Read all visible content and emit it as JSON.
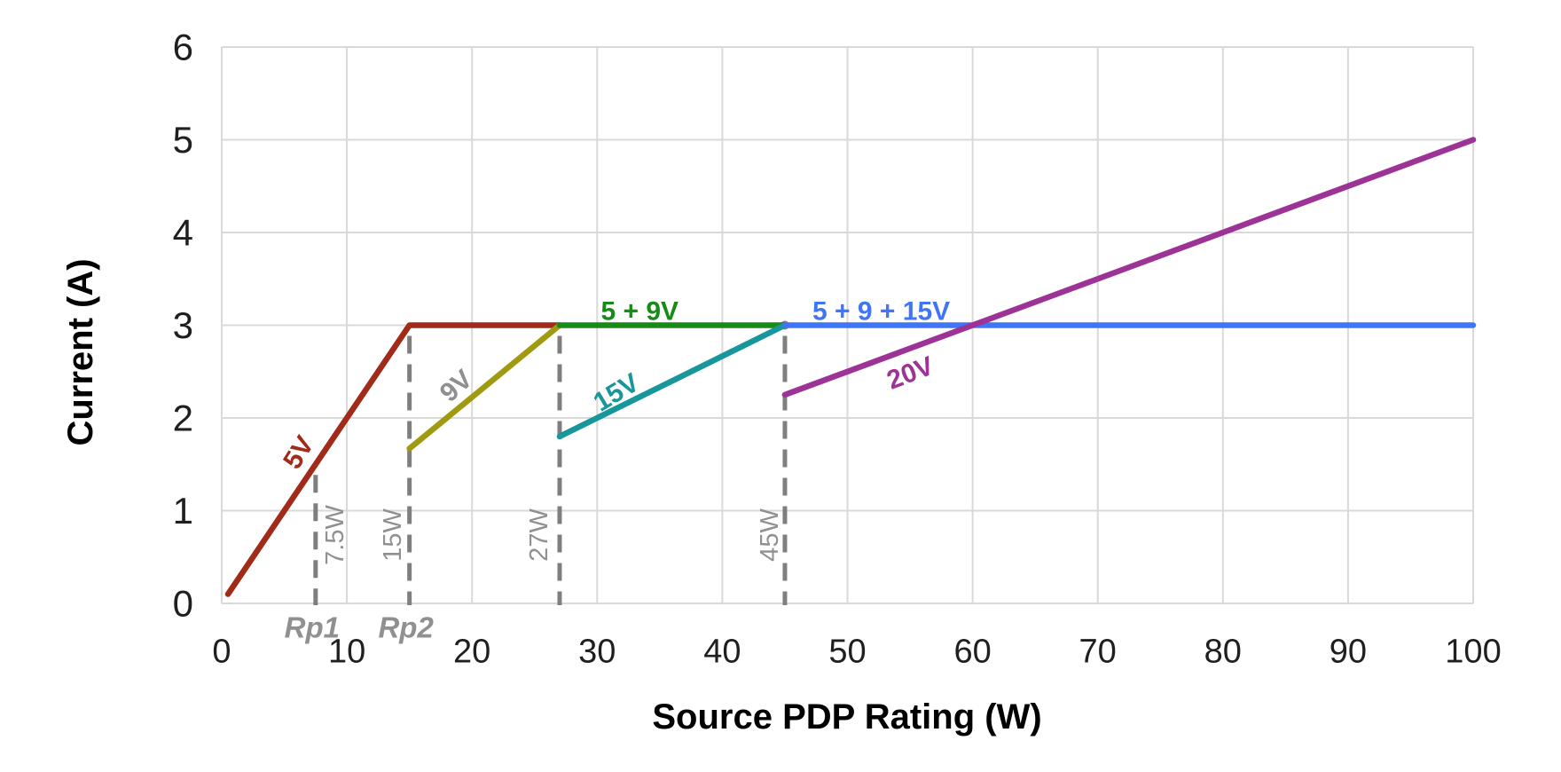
{
  "chart_data": {
    "type": "line",
    "title": "",
    "xlabel": "Source PDP Rating (W)",
    "ylabel": "Current (A)",
    "xlim": [
      0,
      100
    ],
    "ylim": [
      0,
      6
    ],
    "x_ticks": [
      0,
      10,
      20,
      30,
      40,
      50,
      60,
      70,
      80,
      90,
      100
    ],
    "y_ticks": [
      0,
      1,
      2,
      3,
      4,
      5,
      6
    ],
    "grid": true,
    "legend": "inline-labels",
    "colors": {
      "grid": "#D9D9D9",
      "guide_dash": "#7F7F7F",
      "guide_text": "#909090",
      "tick_text": "#1F1F1F",
      "axis_title_text": "#000000"
    },
    "series": [
      {
        "name": "5V",
        "color": "#A12A19",
        "points": [
          [
            0.5,
            0.1
          ],
          [
            15,
            3
          ],
          [
            27,
            3
          ]
        ],
        "label": {
          "text": "5V",
          "at": [
            6.1,
            1.63
          ],
          "angle": -58,
          "color": "#A12A19"
        }
      },
      {
        "name": "9V",
        "color": "#A09A10",
        "points": [
          [
            15,
            1.67
          ],
          [
            27,
            3
          ]
        ],
        "label": {
          "text": "9V",
          "at": [
            18.7,
            2.35
          ],
          "angle": -42,
          "color": "#8F8F8F"
        }
      },
      {
        "name": "5 + 9V",
        "color": "#178A17",
        "points": [
          [
            27,
            3
          ],
          [
            45,
            3
          ]
        ],
        "label": {
          "text": "5 + 9V",
          "at": [
            33.4,
            3.16
          ],
          "angle": 0,
          "color": "#178A17"
        }
      },
      {
        "name": "15V",
        "color": "#17969B",
        "points": [
          [
            27,
            1.8
          ],
          [
            45,
            3
          ]
        ],
        "label": {
          "text": "15V",
          "at": [
            31.5,
            2.28
          ],
          "angle": -31,
          "color": "#17969B"
        }
      },
      {
        "name": "5 + 9 + 15V",
        "color": "#4076F5",
        "points": [
          [
            45,
            3
          ],
          [
            100,
            3
          ]
        ],
        "label": {
          "text": "5 + 9 + 15V",
          "at": [
            52.7,
            3.16
          ],
          "angle": 0,
          "color": "#4076F5"
        }
      },
      {
        "name": "20V",
        "color": "#9D3397",
        "points": [
          [
            45,
            2.25
          ],
          [
            100,
            5
          ]
        ],
        "label": {
          "text": "20V",
          "at": [
            55.0,
            2.49
          ],
          "angle": -21,
          "color": "#9D3397"
        }
      }
    ],
    "guides": [
      {
        "w": 7.5,
        "to_a": 1.5,
        "label": "7.5W",
        "label_dx": 21,
        "rp": "Rp1"
      },
      {
        "w": 15,
        "to_a": 3,
        "label": "15W",
        "label_dx": -20,
        "rp": "Rp2"
      },
      {
        "w": 27,
        "to_a": 3,
        "label": "27W",
        "label_dx": -24
      },
      {
        "w": 45,
        "to_a": 3,
        "label": "45W",
        "label_dx": -18,
        "dot": true
      }
    ]
  }
}
